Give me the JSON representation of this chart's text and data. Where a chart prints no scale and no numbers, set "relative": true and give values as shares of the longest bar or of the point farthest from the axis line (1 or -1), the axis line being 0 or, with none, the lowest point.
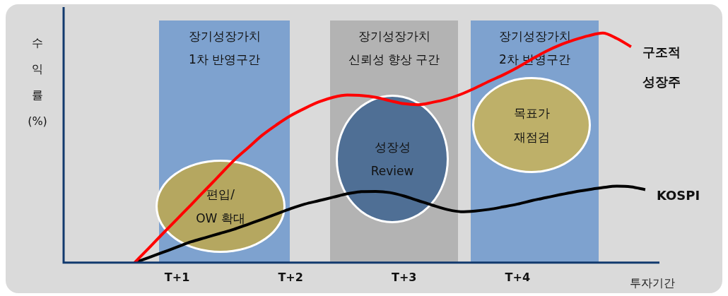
{
  "chart_data": {
    "type": "line",
    "relative": true,
    "ylabel": "수익률 (%)",
    "xlabel": "투자기간",
    "categories": [
      null,
      null,
      null,
      null,
      null,
      null,
      null,
      null,
      "T+1",
      null,
      null,
      null,
      null,
      null,
      null,
      null,
      "T+2",
      null,
      null,
      null,
      null,
      null,
      null,
      null,
      "T+3",
      null,
      null,
      null,
      null,
      null,
      null,
      null,
      "T+4",
      null,
      null,
      null,
      null,
      null,
      null,
      null,
      null,
      null,
      null
    ],
    "series": [
      {
        "name": "구조적 성장주",
        "color": "#ff0000",
        "values": [
          null,
          null,
          null,
          null,
          null,
          0,
          0.063,
          0.127,
          0.19,
          0.253,
          0.317,
          0.381,
          0.445,
          0.5,
          0.555,
          0.6,
          0.64,
          0.672,
          0.7,
          0.72,
          0.73,
          0.728,
          0.72,
          0.705,
          0.692,
          0.688,
          0.698,
          0.712,
          0.733,
          0.76,
          0.79,
          0.818,
          0.85,
          0.886,
          0.92,
          0.948,
          0.97,
          0.988,
          1,
          0.976,
          0.94,
          null,
          null
        ]
      },
      {
        "name": "KOSPI",
        "color": "#000000",
        "values": [
          null,
          null,
          null,
          null,
          null,
          0,
          0.022,
          0.045,
          0.068,
          0.091,
          0.109,
          0.127,
          0.145,
          0.167,
          0.189,
          0.212,
          0.235,
          0.255,
          0.27,
          0.285,
          0.3,
          0.309,
          0.31,
          0.305,
          0.29,
          0.27,
          0.25,
          0.232,
          0.222,
          0.225,
          0.232,
          0.243,
          0.255,
          0.27,
          0.283,
          0.296,
          0.308,
          0.318,
          0.327,
          0.333,
          0.33,
          0.318,
          null
        ]
      }
    ],
    "annotations": [
      "장기성장가치\n1차 반영구간",
      "장기성장가치\n신뢰성 향상 구간",
      "장기성장가치\n2차 반영구간",
      "편입/\nOW 확대",
      "성장성\nReview",
      "목표가\n재점검"
    ],
    "grid": false,
    "legend": false,
    "marker": "none",
    "line_style": "solid"
  }
}
